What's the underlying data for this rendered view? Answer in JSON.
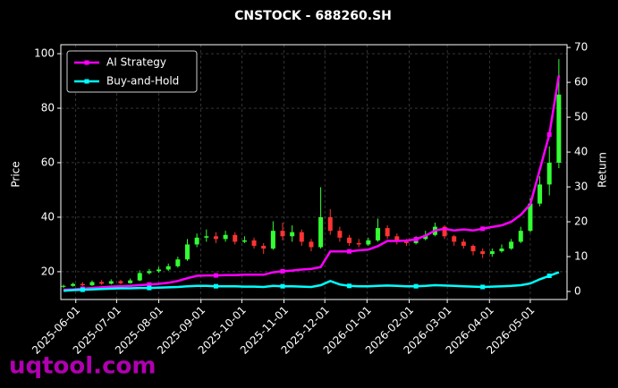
{
  "chart_data": {
    "type": "candlestick",
    "title": "CNSTOCK - 688260.SH",
    "ylabel": "Price",
    "y2label": "Return",
    "watermark": "uqtool.com",
    "x": [
      "2025-05-23",
      "2025-05-30",
      "2025-06-06",
      "2025-06-13",
      "2025-06-20",
      "2025-06-27",
      "2025-07-04",
      "2025-07-11",
      "2025-07-18",
      "2025-07-25",
      "2025-08-01",
      "2025-08-08",
      "2025-08-15",
      "2025-08-22",
      "2025-08-29",
      "2025-09-05",
      "2025-09-12",
      "2025-09-19",
      "2025-09-26",
      "2025-10-03",
      "2025-10-10",
      "2025-10-17",
      "2025-10-24",
      "2025-10-31",
      "2025-11-07",
      "2025-11-14",
      "2025-11-21",
      "2025-11-28",
      "2025-12-05",
      "2025-12-12",
      "2025-12-19",
      "2025-12-26",
      "2026-01-02",
      "2026-01-09",
      "2026-01-16",
      "2026-01-23",
      "2026-01-30",
      "2026-02-06",
      "2026-02-13",
      "2026-02-20",
      "2026-02-27",
      "2026-03-06",
      "2026-03-13",
      "2026-03-20",
      "2026-03-27",
      "2026-04-03",
      "2026-04-10",
      "2026-04-17",
      "2026-04-24",
      "2026-05-01",
      "2026-05-08",
      "2026-05-15",
      "2026-05-22"
    ],
    "candles": {
      "up_color": "#33ff33",
      "down_color": "#ff3333",
      "open": [
        14.5,
        14.8,
        15.5,
        15.0,
        16.2,
        15.6,
        16.5,
        15.8,
        16.8,
        19.5,
        20.2,
        20.8,
        22.0,
        24.5,
        30.0,
        32.5,
        33.0,
        32.0,
        33.5,
        31.0,
        31.5,
        29.5,
        28.5,
        35.0,
        33.0,
        34.5,
        31.0,
        29.0,
        40.0,
        35.0,
        32.5,
        30.5,
        30.0,
        31.5,
        36.0,
        33.0,
        31.0,
        30.5,
        32.0,
        33.5,
        36.5,
        33.0,
        31.0,
        29.5,
        27.5,
        26.5,
        27.5,
        28.5,
        31.0,
        35.0,
        45.0,
        52.0,
        60.0
      ],
      "close": [
        14.8,
        15.5,
        15.0,
        16.2,
        15.6,
        16.5,
        15.8,
        16.8,
        19.5,
        20.2,
        20.8,
        22.0,
        24.5,
        30.0,
        32.5,
        33.0,
        32.0,
        33.5,
        31.0,
        31.5,
        29.5,
        28.5,
        35.0,
        33.0,
        34.5,
        31.0,
        29.0,
        40.0,
        35.0,
        32.5,
        30.5,
        30.0,
        31.5,
        36.0,
        33.0,
        31.0,
        30.5,
        32.0,
        33.5,
        36.5,
        33.0,
        31.0,
        29.5,
        27.5,
        26.5,
        27.5,
        28.5,
        31.0,
        35.0,
        45.0,
        52.0,
        60.0,
        85.0
      ],
      "high": [
        15.2,
        16.0,
        16.2,
        16.8,
        16.9,
        17.2,
        17.0,
        17.5,
        20.5,
        21.0,
        21.8,
        23.0,
        25.5,
        32.0,
        34.0,
        35.5,
        34.5,
        35.0,
        34.5,
        33.0,
        32.5,
        30.5,
        38.5,
        38.0,
        37.0,
        35.5,
        32.0,
        51.0,
        43.0,
        36.5,
        33.5,
        32.0,
        32.5,
        39.5,
        37.0,
        34.0,
        32.0,
        33.0,
        35.0,
        38.0,
        37.0,
        33.5,
        32.0,
        30.0,
        28.5,
        28.5,
        30.0,
        32.0,
        36.5,
        47.0,
        55.0,
        66.0,
        98.0
      ],
      "low": [
        14.0,
        14.5,
        14.7,
        14.8,
        15.2,
        15.3,
        15.4,
        15.6,
        16.5,
        19.0,
        19.6,
        20.3,
        21.5,
        24.0,
        29.0,
        31.0,
        30.5,
        31.0,
        30.0,
        30.5,
        28.5,
        26.5,
        28.0,
        31.5,
        31.0,
        29.5,
        27.5,
        28.5,
        33.5,
        31.0,
        29.5,
        29.0,
        29.5,
        31.0,
        32.0,
        30.0,
        29.5,
        30.0,
        31.5,
        33.0,
        32.0,
        29.5,
        28.5,
        26.0,
        25.0,
        25.5,
        27.0,
        28.0,
        30.5,
        34.5,
        44.0,
        48.0,
        58.0
      ]
    },
    "series": [
      {
        "name": "AI Strategy",
        "color": "#ff00ff",
        "axis": "y2",
        "values": [
          0.5,
          0.6,
          0.8,
          1.0,
          1.2,
          1.4,
          1.5,
          1.6,
          1.8,
          2.0,
          2.2,
          2.5,
          3.0,
          3.8,
          4.5,
          4.6,
          4.6,
          4.7,
          4.7,
          4.8,
          4.8,
          4.8,
          5.5,
          5.8,
          6.0,
          6.3,
          6.5,
          7.0,
          11.5,
          11.5,
          11.5,
          11.8,
          12.0,
          13.0,
          14.5,
          14.5,
          14.6,
          15.0,
          16.0,
          17.5,
          18.0,
          17.5,
          17.8,
          17.5,
          18.0,
          18.5,
          19.0,
          20.0,
          22.0,
          25.0,
          35.0,
          45.0,
          62.0
        ]
      },
      {
        "name": "Buy-and-Hold",
        "color": "#00ffff",
        "axis": "y2",
        "values": [
          0.2,
          0.4,
          0.5,
          0.6,
          0.7,
          0.8,
          0.9,
          0.9,
          1.0,
          1.0,
          1.1,
          1.2,
          1.3,
          1.5,
          1.6,
          1.6,
          1.5,
          1.5,
          1.5,
          1.4,
          1.4,
          1.3,
          1.6,
          1.5,
          1.5,
          1.4,
          1.3,
          1.8,
          3.0,
          2.0,
          1.6,
          1.5,
          1.5,
          1.6,
          1.7,
          1.6,
          1.5,
          1.5,
          1.6,
          1.8,
          1.7,
          1.6,
          1.5,
          1.4,
          1.3,
          1.4,
          1.5,
          1.6,
          1.8,
          2.3,
          3.5,
          4.5,
          5.5
        ]
      }
    ],
    "xlim": [
      "2025-05-21",
      "2026-05-28"
    ],
    "xticks": [
      "2025-06-01",
      "2025-07-01",
      "2025-08-01",
      "2025-09-01",
      "2025-10-01",
      "2025-11-01",
      "2025-12-01",
      "2026-01-01",
      "2026-02-01",
      "2026-03-01",
      "2026-04-01",
      "2026-05-01"
    ],
    "ylim": [
      9.8,
      103.3
    ],
    "yticks": [
      20,
      40,
      60,
      80,
      100
    ],
    "y2lim": [
      -2.3,
      70.8
    ],
    "y2ticks": [
      0,
      10,
      20,
      30,
      40,
      50,
      60,
      70
    ],
    "grid": true,
    "legend": "upper left"
  }
}
